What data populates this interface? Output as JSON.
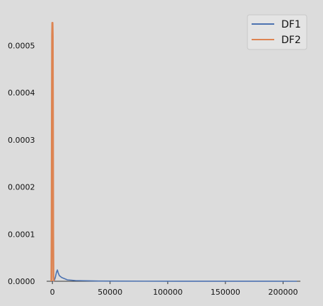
{
  "chart_data": {
    "type": "line",
    "title": "",
    "xlabel": "",
    "ylabel": "",
    "xlim": [
      -5000,
      215000
    ],
    "ylim": [
      0,
      0.00055
    ],
    "x_ticks": [
      0,
      50000,
      100000,
      150000,
      200000
    ],
    "x_tick_labels": [
      "0",
      "50000",
      "100000",
      "150000",
      "200000"
    ],
    "y_ticks": [
      0,
      0.0001,
      0.0002,
      0.0003,
      0.0004,
      0.0005
    ],
    "y_tick_labels": [
      "0.0000",
      "0.0001",
      "0.0002",
      "0.0003",
      "0.0004",
      "0.0005"
    ],
    "grid": false,
    "legend_position": "top-right",
    "series": [
      {
        "name": "DF1",
        "color": "#4c72b0",
        "points": [
          [
            0,
            0
          ],
          [
            1500,
            1e-06
          ],
          [
            2500,
            8e-06
          ],
          [
            3500,
            1.9e-05
          ],
          [
            4300,
            2.4e-05
          ],
          [
            5000,
            1.8e-05
          ],
          [
            6000,
            1.2e-05
          ],
          [
            8000,
            8e-06
          ],
          [
            10000,
            6e-06
          ],
          [
            13000,
            3e-06
          ],
          [
            20000,
            1.5e-06
          ],
          [
            40000,
            5e-07
          ],
          [
            80000,
            2e-07
          ],
          [
            150000,
            1e-07
          ],
          [
            212000,
            0
          ]
        ]
      },
      {
        "name": "DF2",
        "color": "#dd8452",
        "points": [
          [
            -900,
            0
          ],
          [
            -700,
            0.0001
          ],
          [
            -500,
            0.00035
          ],
          [
            -300,
            0.00052
          ],
          [
            -100,
            0.000548
          ],
          [
            100,
            0.000548
          ],
          [
            300,
            0.00052
          ],
          [
            500,
            0.00035
          ],
          [
            700,
            0.0001
          ],
          [
            900,
            1e-05
          ],
          [
            1100,
            0
          ]
        ]
      }
    ]
  }
}
